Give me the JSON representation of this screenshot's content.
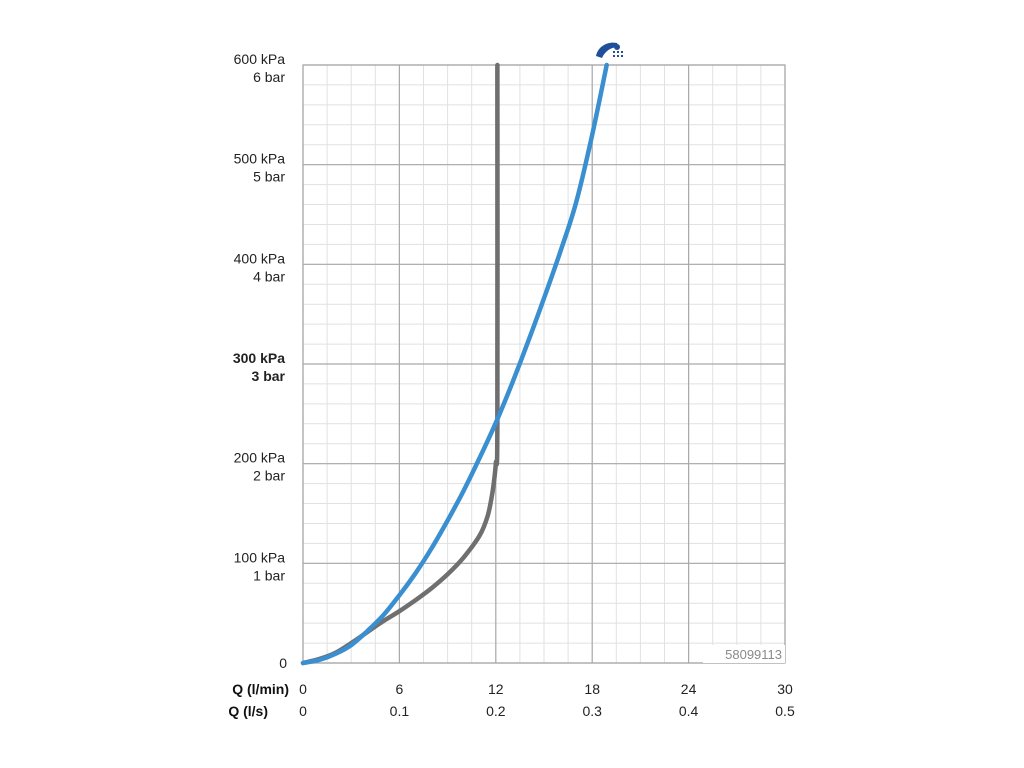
{
  "chart_data": {
    "type": "line",
    "xlabel": "Q (l/min)",
    "xlabel_secondary": "Q (l/s)",
    "x_ticks": [
      "0",
      "6",
      "12",
      "18",
      "24",
      "30"
    ],
    "x_ticks_secondary": [
      "0",
      "0.1",
      "0.2",
      "0.3",
      "0.4",
      "0.5"
    ],
    "xlim": [
      0,
      30
    ],
    "ylim": [
      0,
      600
    ],
    "y_ticks": [
      {
        "value": 0,
        "kpa": "0",
        "bar": ""
      },
      {
        "value": 100,
        "kpa": "100 kPa",
        "bar": "1 bar"
      },
      {
        "value": 200,
        "kpa": "200 kPa",
        "bar": "2 bar"
      },
      {
        "value": 300,
        "kpa": "300 kPa",
        "bar": "3 bar"
      },
      {
        "value": 400,
        "kpa": "400 kPa",
        "bar": "4 bar"
      },
      {
        "value": 500,
        "kpa": "500 kPa",
        "bar": "5 bar"
      },
      {
        "value": 600,
        "kpa": "600 kPa",
        "bar": "6 bar"
      }
    ],
    "bold_tick": 300,
    "grid": true,
    "code_label": "58099113",
    "series": [
      {
        "color": "#3a8fd0",
        "x": [
          0,
          1,
          2,
          3,
          4,
          5,
          6,
          7,
          8,
          9,
          10,
          11,
          12,
          13,
          14,
          15,
          16,
          17,
          18,
          18.9
        ],
        "y": [
          0,
          3,
          9,
          18,
          32,
          48,
          68,
          90,
          115,
          143,
          173,
          206,
          241,
          280,
          322,
          366,
          412,
          462,
          530,
          600
        ]
      },
      {
        "color": "#6f6f70",
        "x": [
          0,
          1,
          2,
          3,
          4,
          5,
          6,
          7,
          8,
          9,
          10,
          11,
          11.5,
          11.8,
          12,
          12.1,
          12.1
        ],
        "y": [
          0,
          4,
          10,
          20,
          31,
          42,
          52,
          63,
          75,
          89,
          106,
          128,
          148,
          172,
          200,
          240,
          600
        ]
      }
    ]
  }
}
